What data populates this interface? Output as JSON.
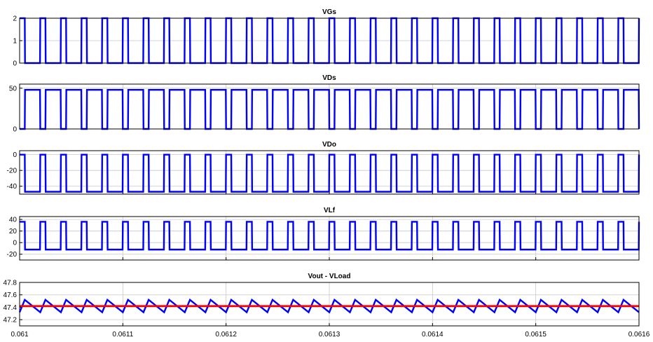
{
  "chart_data": [
    {
      "type": "line",
      "title": "VGs",
      "xlim": [
        0.061,
        0.0616
      ],
      "ylim": [
        0,
        2
      ],
      "yticks": [
        0,
        1,
        2
      ],
      "ytick_labels": [
        "0",
        "1",
        "2"
      ],
      "xtick_labels": [],
      "grid": true,
      "series": [
        {
          "color": "#0000ff",
          "waveform": "square",
          "low": 0,
          "high": 2,
          "period": 2e-05,
          "duty": 0.25,
          "start": 0.061
        }
      ]
    },
    {
      "type": "line",
      "title": "VDs",
      "xlim": [
        0.061,
        0.0616
      ],
      "ylim": [
        0,
        55
      ],
      "yticks": [
        0,
        50
      ],
      "ytick_labels": [
        "0",
        "50"
      ],
      "xtick_labels": [],
      "grid": true,
      "series": [
        {
          "color": "#0000ff",
          "waveform": "square",
          "low": 0,
          "high": 48,
          "period": 2e-05,
          "duty": 0.25,
          "start": 0.061,
          "invert": true
        }
      ]
    },
    {
      "type": "line",
      "title": "VDo",
      "xlim": [
        0.061,
        0.0616
      ],
      "ylim": [
        -50,
        5
      ],
      "yticks": [
        0,
        -20,
        -40
      ],
      "ytick_labels": [
        "0",
        "-20",
        "-40"
      ],
      "xtick_labels": [],
      "grid": true,
      "series": [
        {
          "color": "#0000ff",
          "waveform": "square",
          "low": -47,
          "high": 0,
          "period": 2e-05,
          "duty": 0.25,
          "start": 0.061
        }
      ]
    },
    {
      "type": "line",
      "title": "VLf",
      "xlim": [
        0.061,
        0.0616
      ],
      "ylim": [
        -30,
        45
      ],
      "yticks": [
        40,
        20,
        0,
        -20
      ],
      "ytick_labels": [
        "40",
        "20",
        "0",
        "-20"
      ],
      "xtick_labels": [],
      "grid": true,
      "series": [
        {
          "color": "#0000ff",
          "waveform": "square",
          "low": -12,
          "high": 36,
          "period": 2e-05,
          "duty": 0.25,
          "start": 0.061
        }
      ]
    },
    {
      "type": "line",
      "title": "Vout - VLoad",
      "xlim": [
        0.061,
        0.0616
      ],
      "ylim": [
        47.1,
        47.8
      ],
      "yticks": [
        47.8,
        47.6,
        47.4,
        47.2
      ],
      "ytick_labels": [
        "47.8",
        "47.6",
        "47.4",
        "47.2"
      ],
      "xticks": [
        0.061,
        0.0611,
        0.0612,
        0.0613,
        0.0614,
        0.0615,
        0.0616
      ],
      "xtick_labels": [
        "0.061",
        "0.0611",
        "0.0612",
        "0.0613",
        "0.0614",
        "0.0615",
        "0.0616"
      ],
      "grid": true,
      "series": [
        {
          "color": "#0000ff",
          "waveform": "sawtooth",
          "low": 47.32,
          "high": 47.52,
          "period": 2e-05,
          "duty": 0.25,
          "start": 0.061
        },
        {
          "color": "#ff0000",
          "waveform": "constant",
          "value": 47.42
        }
      ]
    }
  ]
}
